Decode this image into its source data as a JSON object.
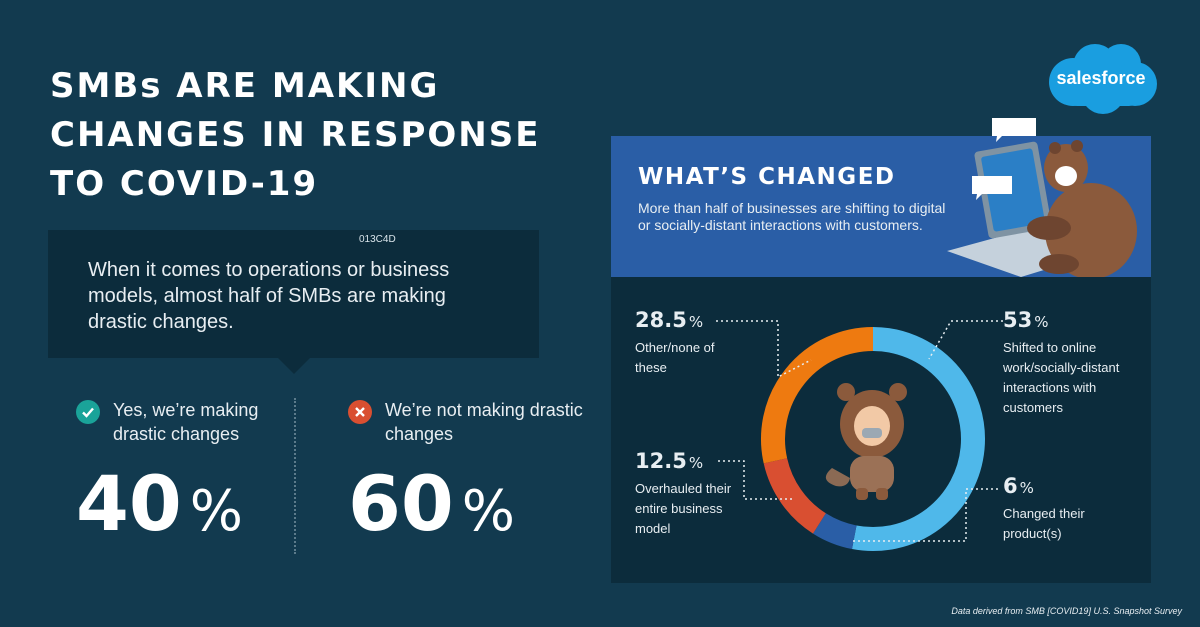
{
  "title": "SMBs ARE MAKING CHANGES IN RESPONSE TO COVID-19",
  "callout": {
    "code": "013C4D",
    "text": "When it comes to operations or business models, almost half of SMBs are making drastic changes."
  },
  "stats": [
    {
      "icon": "check-icon",
      "label": "Yes, we’re making drastic changes",
      "value": "40",
      "unit": "%",
      "color": "#1aa399"
    },
    {
      "icon": "x-icon",
      "label": "We’re not making drastic changes",
      "value": "60",
      "unit": "%",
      "color": "#d94f31"
    }
  ],
  "panel": {
    "heading": "WHAT’S CHANGED",
    "text": "More than half of businesses are shifting to digital or socially-distant interactions with customers."
  },
  "chart_data": {
    "type": "pie",
    "categories": [
      "Shifted to online work/socially-distant interactions with customers",
      "Changed their product(s)",
      "Overhauled their entire business model",
      "Other/none of these"
    ],
    "values": [
      53,
      6,
      12.5,
      28.5
    ],
    "value_labels": [
      "53",
      "6",
      "12.5",
      "28.5"
    ],
    "unit": "%",
    "colors": [
      "#4fb8ea",
      "#2a5ea6",
      "#d94f31",
      "#ee7a10"
    ]
  },
  "brand": {
    "logo_text": "salesforce",
    "cloud_color": "#1a9ee0"
  },
  "footer": "Data derived from SMB [COVID19] U.S. Snapshot Survey"
}
